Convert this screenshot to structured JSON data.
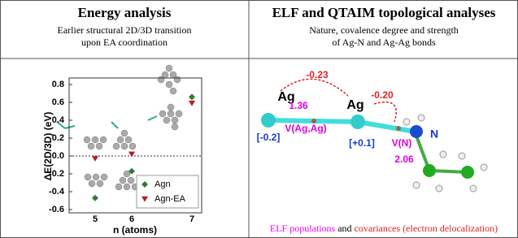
{
  "left_panel": {
    "title": "Energy analysis",
    "subtitle": [
      "Earlier structural 2D/3D transition",
      "upon EA coordination"
    ]
  },
  "chart_data": {
    "type": "scatter",
    "xlabel": "n (atoms)",
    "ylabel": "ΔE(2D/3D) (eV)",
    "categories": [
      "5",
      "6",
      "7"
    ],
    "series": [
      {
        "name": "Agn",
        "color": "#2e7d32",
        "marker": "diamond",
        "values": [
          -0.47,
          -0.17,
          0.66
        ]
      },
      {
        "name": "Agn-EA",
        "color": "#b71c1c",
        "marker": "triangle-down",
        "values": [
          -0.03,
          0.02,
          0.59
        ]
      }
    ],
    "ylim": [
      -0.6,
      0.8
    ],
    "yticks": [
      -0.6,
      -0.4,
      -0.2,
      {
        "value": 0,
        "label": "0.0"
      },
      0.2,
      0.4,
      0.6,
      0.8
    ],
    "zero_line": true,
    "legend": "lower right"
  },
  "right_panel": {
    "title": "ELF and QTAIM topological analyses",
    "subtitle": [
      "Nature, covalence degree and strength",
      "of Ag-N and Ag-Ag bonds"
    ],
    "labels": {
      "ag1": "Ag",
      "ag2": "Ag",
      "n": "N",
      "charge_transfer_1": "-0.23",
      "charge_transfer_2": "-0.20",
      "pop_agag": "1.36",
      "basin_agag": "V(Ag,Ag)",
      "charge_1": "[-0.2]",
      "charge_2": "[+0.1]",
      "basin_n": "V(N)",
      "pop_n": "2.06"
    },
    "footer": [
      "ELF populations",
      " and ",
      "covariances (electron delocalization)"
    ]
  }
}
